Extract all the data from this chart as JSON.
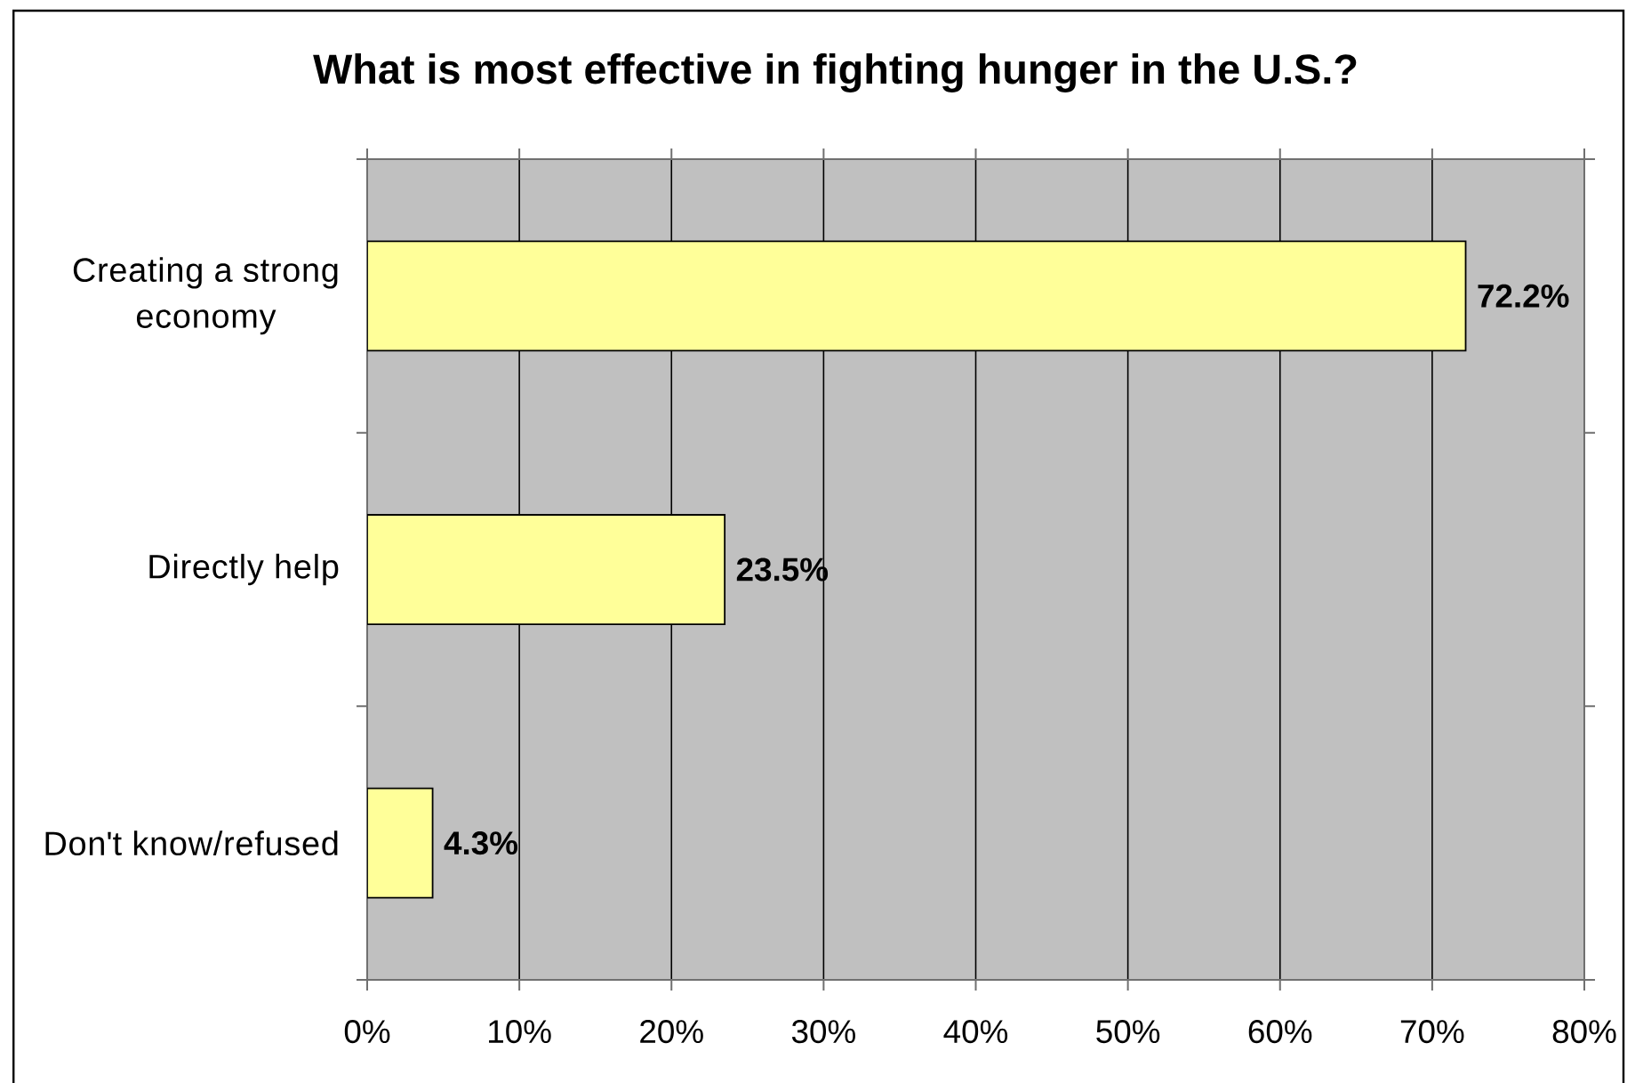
{
  "chart_data": {
    "type": "bar",
    "orientation": "horizontal",
    "title": "What is most effective in fighting hunger in the U.S.?",
    "categories": [
      "Creating a strong economy",
      "Directly help",
      "Don't know/refused"
    ],
    "values": [
      72.2,
      23.5,
      4.3
    ],
    "color": "#ffff99",
    "value_labels": [
      "72.2%",
      "23.5%",
      "4.3%"
    ],
    "xlim": [
      0,
      80
    ],
    "xticks": [
      {
        "value": 0,
        "label": "0%"
      },
      {
        "value": 10,
        "label": "10%"
      },
      {
        "value": 20,
        "label": "20%"
      },
      {
        "value": 30,
        "label": "30%"
      },
      {
        "value": 40,
        "label": "40%"
      },
      {
        "value": 50,
        "label": "50%"
      },
      {
        "value": 60,
        "label": "60%"
      },
      {
        "value": 70,
        "label": "70%"
      },
      {
        "value": 80,
        "label": "80%"
      }
    ],
    "grid": "x"
  }
}
